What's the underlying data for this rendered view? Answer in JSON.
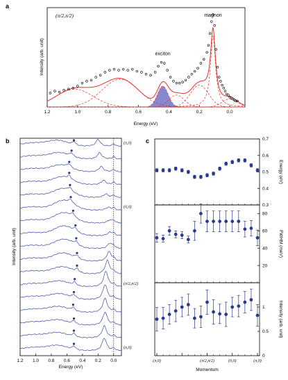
{
  "chart_data": [
    {
      "id": "a",
      "panel_label": "a",
      "type": "line",
      "annotation": "(π/2,π/2)",
      "xlabel": "Energy (eV)",
      "ylabel": "Intensity (arb. unit)",
      "xlim": [
        1.2,
        -0.1
      ],
      "ylim": [
        0,
        1.0
      ],
      "xticks": [
        1.2,
        1.0,
        0.8,
        0.6,
        0.4,
        0.2,
        0.0
      ],
      "xtick_labels": [
        "1.2",
        "1.0",
        "0.8",
        "0.6",
        "0.4",
        "0.2",
        "0.0"
      ],
      "labels": [
        {
          "text": "magnon",
          "x": 0.11,
          "y": 0.91
        },
        {
          "text": "exciton",
          "x": 0.44,
          "y": 0.52
        }
      ],
      "colors": {
        "data": "#000000",
        "fit": "#e8322b",
        "components": "#e8322b",
        "shade": "#6f74c9"
      },
      "data_points": [
        [
          1.18,
          0.14
        ],
        [
          1.15,
          0.16
        ],
        [
          1.12,
          0.15
        ],
        [
          1.09,
          0.17
        ],
        [
          1.06,
          0.18
        ],
        [
          1.03,
          0.19
        ],
        [
          1.0,
          0.21
        ],
        [
          0.97,
          0.24
        ],
        [
          0.94,
          0.26
        ],
        [
          0.91,
          0.27
        ],
        [
          0.88,
          0.3
        ],
        [
          0.85,
          0.32
        ],
        [
          0.82,
          0.35
        ],
        [
          0.79,
          0.37
        ],
        [
          0.76,
          0.38
        ],
        [
          0.73,
          0.37
        ],
        [
          0.7,
          0.38
        ],
        [
          0.67,
          0.37
        ],
        [
          0.64,
          0.38
        ],
        [
          0.61,
          0.36
        ],
        [
          0.58,
          0.35
        ],
        [
          0.55,
          0.33
        ],
        [
          0.52,
          0.32
        ],
        [
          0.49,
          0.35
        ],
        [
          0.47,
          0.41
        ],
        [
          0.45,
          0.45
        ],
        [
          0.43,
          0.44
        ],
        [
          0.41,
          0.37
        ],
        [
          0.39,
          0.3
        ],
        [
          0.37,
          0.26
        ],
        [
          0.35,
          0.24
        ],
        [
          0.33,
          0.24
        ],
        [
          0.31,
          0.25
        ],
        [
          0.29,
          0.27
        ],
        [
          0.27,
          0.3
        ],
        [
          0.25,
          0.33
        ],
        [
          0.23,
          0.36
        ],
        [
          0.21,
          0.39
        ],
        [
          0.19,
          0.44
        ],
        [
          0.17,
          0.48
        ],
        [
          0.15,
          0.55
        ],
        [
          0.14,
          0.62
        ],
        [
          0.13,
          0.74
        ],
        [
          0.12,
          0.86
        ],
        [
          0.11,
          0.93
        ],
        [
          0.1,
          0.82
        ],
        [
          0.09,
          0.58
        ],
        [
          0.08,
          0.4
        ],
        [
          0.07,
          0.3
        ],
        [
          0.06,
          0.26
        ],
        [
          0.05,
          0.22
        ],
        [
          0.04,
          0.19
        ],
        [
          0.03,
          0.16
        ],
        [
          0.02,
          0.13
        ],
        [
          0.01,
          0.12
        ],
        [
          0.0,
          0.1
        ],
        [
          -0.01,
          0.09
        ],
        [
          -0.02,
          0.08
        ],
        [
          -0.03,
          0.07
        ],
        [
          -0.04,
          0.06
        ],
        [
          -0.05,
          0.06
        ]
      ],
      "components": [
        {
          "kind": "lorentz",
          "center": 0.11,
          "amp": 0.72,
          "width": 0.02
        },
        {
          "kind": "gauss",
          "center": 0.44,
          "amp": 0.21,
          "width": 0.035,
          "shaded": true
        },
        {
          "kind": "gauss",
          "center": 0.72,
          "amp": 0.28,
          "width": 0.12
        },
        {
          "kind": "gauss",
          "center": 1.02,
          "amp": 0.18,
          "width": 0.12
        },
        {
          "kind": "gauss",
          "center": 0.2,
          "amp": 0.22,
          "width": 0.06
        },
        {
          "kind": "gauss",
          "center": 0.35,
          "amp": 0.12,
          "width": 0.05
        },
        {
          "kind": "gauss",
          "center": 0.0,
          "amp": 0.08,
          "width": 0.05
        }
      ]
    },
    {
      "id": "b",
      "panel_label": "b",
      "type": "line",
      "xlabel": "Energy (eV)",
      "ylabel": "Intensity (arb. unit)",
      "xlim": [
        1.2,
        -0.1
      ],
      "xticks": [
        1.2,
        1.0,
        0.8,
        0.6,
        0.4,
        0.2,
        0.0
      ],
      "xtick_labels": [
        "1.2",
        "1.0",
        "0.8",
        "0.6",
        "0.4",
        "0.2",
        "0.0"
      ],
      "reference_line_x": 0.0,
      "k_labels": [
        {
          "text": "(π,0)",
          "spectrum": 16
        },
        {
          "text": "(0,0)",
          "spectrum": 11
        },
        {
          "text": "(π/2,π/2)",
          "spectrum": 5
        },
        {
          "text": "(π,0)",
          "spectrum": 0
        }
      ],
      "colors": {
        "line": "#3a4aa8",
        "marker": "#2a3590"
      },
      "spectra_count": 17,
      "exciton_markers_x": [
        0.51,
        0.51,
        0.51,
        0.52,
        0.51,
        0.5,
        0.47,
        0.47,
        0.48,
        0.49,
        0.52,
        0.55,
        0.56,
        0.57,
        0.57,
        0.54,
        0.51
      ],
      "magnon_x": [
        0.12,
        0.12,
        0.11,
        0.11,
        0.11,
        0.1,
        0.08,
        0.06,
        0.05,
        0.05,
        0.05,
        0.07,
        0.1,
        0.13,
        0.16,
        0.18,
        0.2
      ],
      "magnon_amp": [
        1.3,
        1.25,
        1.35,
        1.45,
        1.55,
        1.6,
        1.4,
        1.0,
        0.55,
        0.35,
        0.3,
        0.3,
        0.35,
        0.45,
        0.55,
        0.65,
        0.7
      ],
      "broad_center": [
        0.72,
        0.72,
        0.72,
        0.71,
        0.7,
        0.7,
        0.66,
        0.65,
        0.64,
        0.64,
        0.64,
        0.64,
        0.65,
        0.66,
        0.68,
        0.7,
        0.72
      ],
      "broad_amp": [
        0.55,
        0.55,
        0.55,
        0.6,
        0.6,
        0.6,
        0.75,
        0.85,
        0.95,
        1.0,
        1.05,
        1.0,
        0.9,
        0.8,
        0.7,
        0.65,
        0.6
      ]
    },
    {
      "id": "c1",
      "panel_label": "c",
      "type": "scatter",
      "ylabel": "Energy (eV)",
      "ylim": [
        0.3,
        0.7
      ],
      "yticks": [
        0.3,
        0.4,
        0.5,
        0.6,
        0.7
      ],
      "ytick_labels": [
        "0.3",
        "0.4",
        "0.5",
        "0.6",
        "0.7"
      ],
      "x": [
        0,
        1,
        2,
        3,
        4,
        5,
        6,
        7,
        8,
        9,
        10,
        11,
        12,
        13,
        14,
        15,
        16
      ],
      "values": [
        0.51,
        0.51,
        0.51,
        0.52,
        0.51,
        0.5,
        0.47,
        0.47,
        0.48,
        0.49,
        0.52,
        0.55,
        0.56,
        0.57,
        0.57,
        0.54,
        0.51
      ],
      "errors": [
        0.01,
        0.01,
        0.01,
        0.01,
        0.01,
        0.01,
        0.01,
        0.01,
        0.01,
        0.01,
        0.01,
        0.01,
        0.01,
        0.01,
        0.01,
        0.01,
        0.01
      ]
    },
    {
      "id": "c2",
      "panel_label": "",
      "type": "scatter",
      "ylabel": "FWHM (meV)",
      "ylim": [
        0,
        90
      ],
      "yticks": [
        20,
        40,
        60,
        80
      ],
      "ytick_labels": [
        "20",
        "40",
        "60",
        "80"
      ],
      "x": [
        0,
        1,
        2,
        3,
        4,
        5,
        6,
        7,
        8,
        9,
        10,
        11,
        12,
        13,
        14,
        15,
        16
      ],
      "values": [
        52,
        51,
        60,
        56,
        55,
        50,
        60,
        80,
        71,
        71,
        71,
        71,
        71,
        71,
        62,
        63,
        52
      ],
      "errors": [
        5,
        4,
        5,
        4,
        4,
        4,
        11,
        11,
        12,
        12,
        12,
        12,
        12,
        12,
        9,
        9,
        9
      ]
    },
    {
      "id": "c3",
      "panel_label": "",
      "type": "scatter",
      "ylabel": "Intensity (arb. unit)",
      "xlabel": "Momentum",
      "ylim": [
        0,
        1.5
      ],
      "yticks": [
        0,
        0.5,
        1
      ],
      "ytick_labels": [
        "0",
        "0.5",
        "1"
      ],
      "xticks": [
        0,
        4,
        8,
        12,
        16
      ],
      "xtick_labels": [
        "(π,0)",
        "",
        "(π/2,π/2)",
        "(0,0)",
        "(π,0)"
      ],
      "x": [
        0,
        1,
        2,
        3,
        4,
        5,
        6,
        7,
        8,
        9,
        10,
        11,
        12,
        13,
        14,
        15,
        16
      ],
      "values": [
        0.75,
        0.77,
        0.85,
        0.92,
        1.0,
        1.05,
        0.77,
        0.8,
        1.1,
        0.9,
        0.86,
        0.85,
        1.0,
        1.02,
        1.1,
        1.15,
        0.83
      ],
      "errors": [
        0.24,
        0.22,
        0.2,
        0.22,
        0.2,
        0.22,
        0.2,
        0.22,
        0.25,
        0.25,
        0.2,
        0.25,
        0.2,
        0.22,
        0.22,
        0.22,
        0.22
      ]
    }
  ]
}
